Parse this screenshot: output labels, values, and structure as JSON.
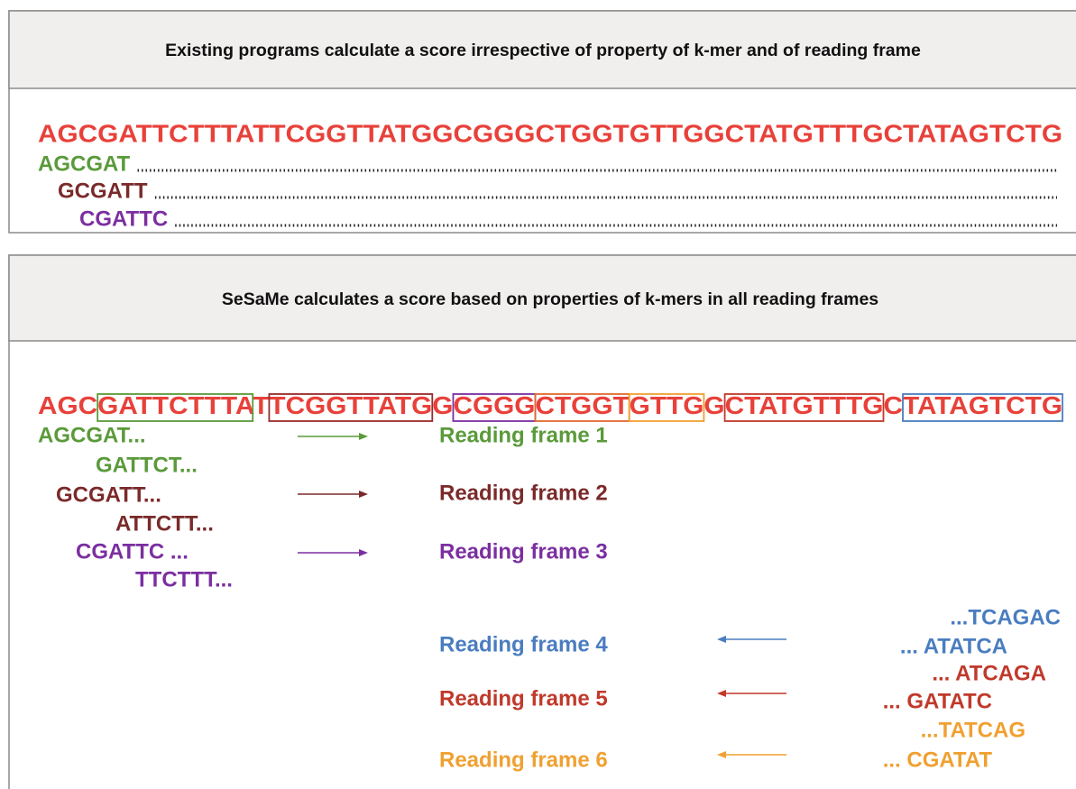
{
  "panel1": {
    "title": "Existing programs calculate a score irrespective of property of k-mer and of reading frame",
    "sequence": "AGCGATTCTTTATTCGGTTATGGCGGGCTGGTGTTGGCTATGTTTGCTATAGTCTG",
    "sequence_color": "#e8413a",
    "kmers": [
      {
        "text": "AGCGAT",
        "color": "#5a9a3a"
      },
      {
        "text": "GCGATT",
        "color": "#7a2a2a"
      },
      {
        "text": "CGATTC",
        "color": "#7b2fa0"
      }
    ]
  },
  "panel2": {
    "title": "SeSaMe calculates a score based on properties of k-mers in all reading frames",
    "sequence_color": "#e8413a",
    "segments": [
      {
        "text": "AGC"
      },
      {
        "text": "GATTCTTTA",
        "box": "#5a9a3a"
      },
      {
        "text": "T"
      },
      {
        "text": "TCGGTTATG",
        "box": "#9a2a2a"
      },
      {
        "text": "G"
      },
      {
        "text": "CGGG",
        "box": "#7b2fa0"
      },
      {
        "text": "CTGGT",
        "box": "#e06a30"
      },
      {
        "text": "GTTG",
        "box": "#f0a030"
      },
      {
        "text": "G"
      },
      {
        "text": "CTATGTTTG",
        "box": "#c0392b"
      },
      {
        "text": "C"
      },
      {
        "text": "TATAGTCTG",
        "box": "#4a7dc0"
      }
    ],
    "left_kmers": [
      {
        "text": "AGCGAT...",
        "color": "#5a9a3a"
      },
      {
        "text": "GATTCT...",
        "color": "#5a9a3a"
      },
      {
        "text": "GCGATT...",
        "color": "#7a2a2a"
      },
      {
        "text": "ATTCTT...",
        "color": "#7a2a2a"
      },
      {
        "text": "CGATTC ...",
        "color": "#7b2fa0"
      },
      {
        "text": "TTCTTT...",
        "color": "#7b2fa0"
      }
    ],
    "frames": [
      {
        "label": "Reading frame 1",
        "color": "#5a9a3a"
      },
      {
        "label": "Reading frame 2",
        "color": "#7a2a2a"
      },
      {
        "label": "Reading frame 3",
        "color": "#7b2fa0"
      },
      {
        "label": "Reading frame 4",
        "color": "#4a7dc0"
      },
      {
        "label": "Reading frame 5",
        "color": "#c0392b"
      },
      {
        "label": "Reading frame 6",
        "color": "#f0a030"
      }
    ],
    "right_kmers": [
      {
        "text": "...TCAGAC",
        "color": "#4a7dc0"
      },
      {
        "text": "... ATATCA",
        "color": "#4a7dc0"
      },
      {
        "text": "... ATCAGA",
        "color": "#c0392b"
      },
      {
        "text": "... GATATC",
        "color": "#c0392b"
      },
      {
        "text": "...TATCAG",
        "color": "#f0a030"
      },
      {
        "text": "... CGATAT",
        "color": "#f0a030"
      }
    ]
  }
}
